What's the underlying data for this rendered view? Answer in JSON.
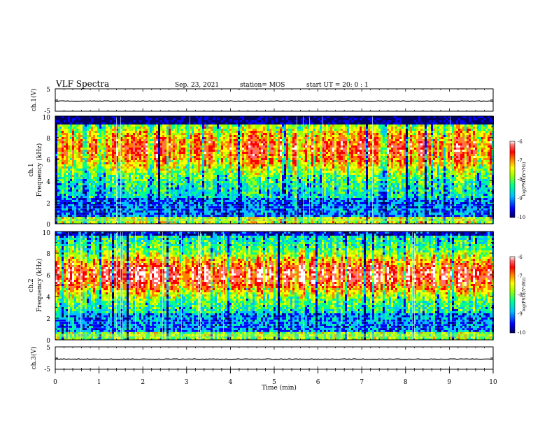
{
  "header": {
    "title": "VLF Spectra",
    "date": "Sep. 23, 2021",
    "station": "station= MOS",
    "start": "start  UT =   20: 0  : 1"
  },
  "chart_data": [
    {
      "type": "line",
      "panel": "ch1-waveform",
      "ylabel": "ch.1(V)",
      "ylim": [
        -5,
        5
      ],
      "yticks": [
        "5",
        "-5"
      ],
      "xlim": [
        0,
        10
      ],
      "series": [
        {
          "values_description": "",
          "level": 0
        }
      ]
    },
    {
      "type": "heatmap",
      "panel": "ch1-spectrogram",
      "ylabel": "ch.1",
      "ylabel2": "Frequency (kHz)",
      "ylim": [
        0,
        10
      ],
      "yticks": [
        "0",
        "2",
        "4",
        "6",
        "8",
        "10"
      ],
      "xlim": [
        0,
        10
      ],
      "colorbar": {
        "label": "log(PSD)(V²/Hz)",
        "range": [
          -10,
          -6
        ],
        "ticks": [
          "-6",
          "-7",
          "-8",
          "-9",
          "-10"
        ]
      }
    },
    {
      "type": "heatmap",
      "panel": "ch2-spectrogram",
      "ylabel": "ch.2",
      "ylabel2": "Frequency (kHz)",
      "ylim": [
        0,
        10
      ],
      "yticks": [
        "0",
        "2",
        "4",
        "6",
        "8",
        "10"
      ],
      "xlim": [
        0,
        10
      ],
      "colorbar": {
        "label": "log(PSD)(V²/Hz)",
        "range": [
          -10,
          -6
        ],
        "ticks": [
          "-6",
          "-7",
          "-8",
          "-9",
          "-10"
        ]
      }
    },
    {
      "type": "line",
      "panel": "ch3-waveform",
      "ylabel": "ch.3(V)",
      "ylim": [
        -5,
        5
      ],
      "yticks": [
        "5",
        "-5"
      ],
      "xlim": [
        0,
        10
      ],
      "xlabel": "Time (min)",
      "xticks": [
        "0",
        "1",
        "2",
        "3",
        "4",
        "5",
        "6",
        "7",
        "8",
        "9",
        "10"
      ]
    }
  ],
  "colors": {
    "colormap": [
      "#000060",
      "#0000ff",
      "#00c0ff",
      "#00ff90",
      "#a0ff00",
      "#ffff00",
      "#ff8000",
      "#ff0000",
      "#ff7070",
      "#ffffff"
    ]
  }
}
